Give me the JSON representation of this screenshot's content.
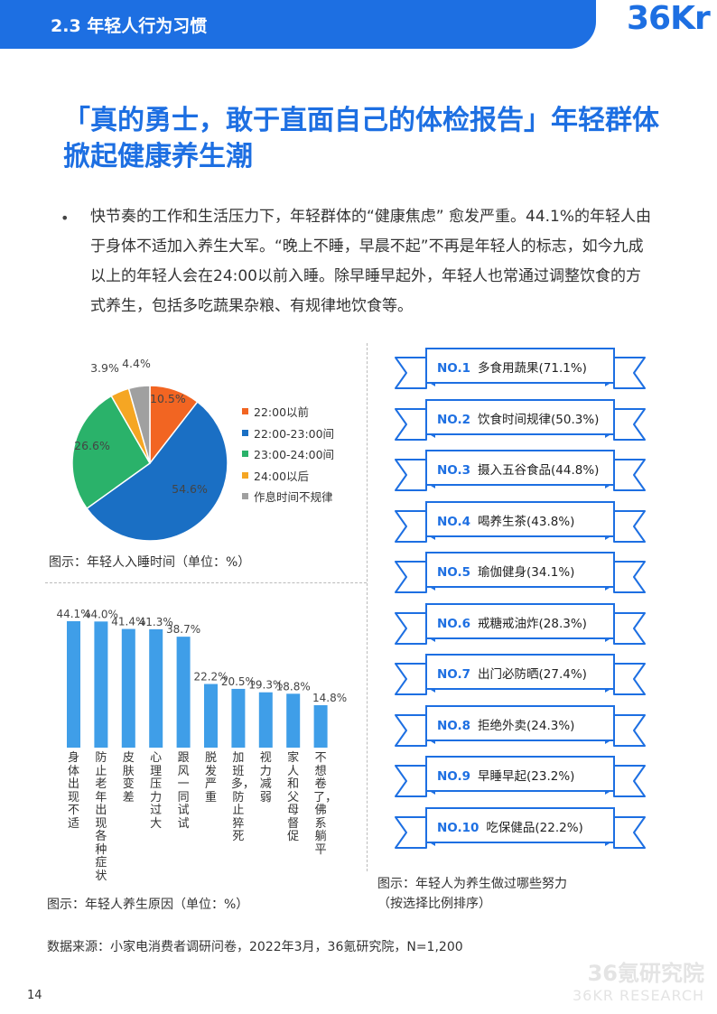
{
  "header": {
    "section_title": "2.3 年轻人行为习惯",
    "logo": "36Kr"
  },
  "headline": "「真的勇士，敢于直面自己的体检报告」年轻群体掀起健康养生潮",
  "bullet": "•",
  "body": "快节奏的工作和生活压力下，年轻群体的“健康焦虑” 愈发严重。44.1%的年轻人由于身体不适加入养生大军。“晚上不睡，早晨不起”不再是年轻人的标志，如今九成以上的年轻人会在24:00以前入睡。除早睡早起外，年轻人也常通过调整饮食的方式养生，包括多吃蔬果杂粮、有规律地饮食等。",
  "chart_data": [
    {
      "type": "pie",
      "title": "",
      "categories": [
        "22:00以前",
        "22:00-23:00间",
        "23:00-24:00间",
        "24:00以后",
        "作息时间不规律"
      ],
      "values": [
        10.5,
        54.6,
        26.6,
        3.9,
        4.4
      ],
      "value_labels": [
        "10.5%",
        "54.6%",
        "26.6%",
        "3.9%",
        "4.4%"
      ],
      "colors": [
        "#f26522",
        "#1a6fc4",
        "#2ab26a",
        "#f5a623",
        "#a0a0a0"
      ],
      "legend_position": "right"
    },
    {
      "type": "bar",
      "title": "",
      "categories": [
        "身体出现不适",
        "防止老年出现各种症状",
        "皮肤变差",
        "心理压力过大",
        "跟风一同试试",
        "脱发严重",
        "加班多，防止猝死",
        "视力减弱",
        "家人和父母督促",
        "不想卷了，佛系躺平"
      ],
      "values": [
        44.1,
        44.0,
        41.4,
        41.3,
        38.7,
        22.2,
        20.5,
        19.3,
        18.8,
        14.8
      ],
      "value_labels": [
        "44.1%",
        "44.0%",
        "41.4%",
        "41.3%",
        "38.7%",
        "22.2%",
        "20.5%",
        "19.3%",
        "18.8%",
        "14.8%"
      ],
      "color": "#3f9ee8",
      "ylim": [
        0,
        50
      ],
      "grid": false
    }
  ],
  "captions": {
    "pie": "图示：年轻人入睡时间（单位：%）",
    "bar": "图示：年轻人养生原因（单位：%）",
    "ranking_line1": "图示：年轻人为养生做过哪些努力",
    "ranking_line2": "（按选择比例排序）"
  },
  "ranking": [
    {
      "rank": "NO.1",
      "text": "多食用蔬果(71.1%)"
    },
    {
      "rank": "NO.2",
      "text": "饮食时间规律(50.3%)"
    },
    {
      "rank": "NO.3",
      "text": "摄入五谷食品(44.8%)"
    },
    {
      "rank": "NO.4",
      "text": "喝养生茶(43.8%)"
    },
    {
      "rank": "NO.5",
      "text": "瑜伽健身(34.1%)"
    },
    {
      "rank": "NO.6",
      "text": "戒糖戒油炸(28.3%)"
    },
    {
      "rank": "NO.7",
      "text": "出门必防晒(27.4%)"
    },
    {
      "rank": "NO.8",
      "text": "拒绝外卖(24.3%)"
    },
    {
      "rank": "NO.9",
      "text": "早睡早起(23.2%)"
    },
    {
      "rank": "NO.10",
      "text": "吃保健品(22.2%)"
    }
  ],
  "ribbon_color": "#1d6fe2",
  "source": "数据来源：小家电消费者调研问卷，2022年3月，36氪研究院，N=1,200",
  "page_number": "14",
  "watermark": {
    "line1": "36氪研究院",
    "line2": "36KR RESEARCH"
  }
}
